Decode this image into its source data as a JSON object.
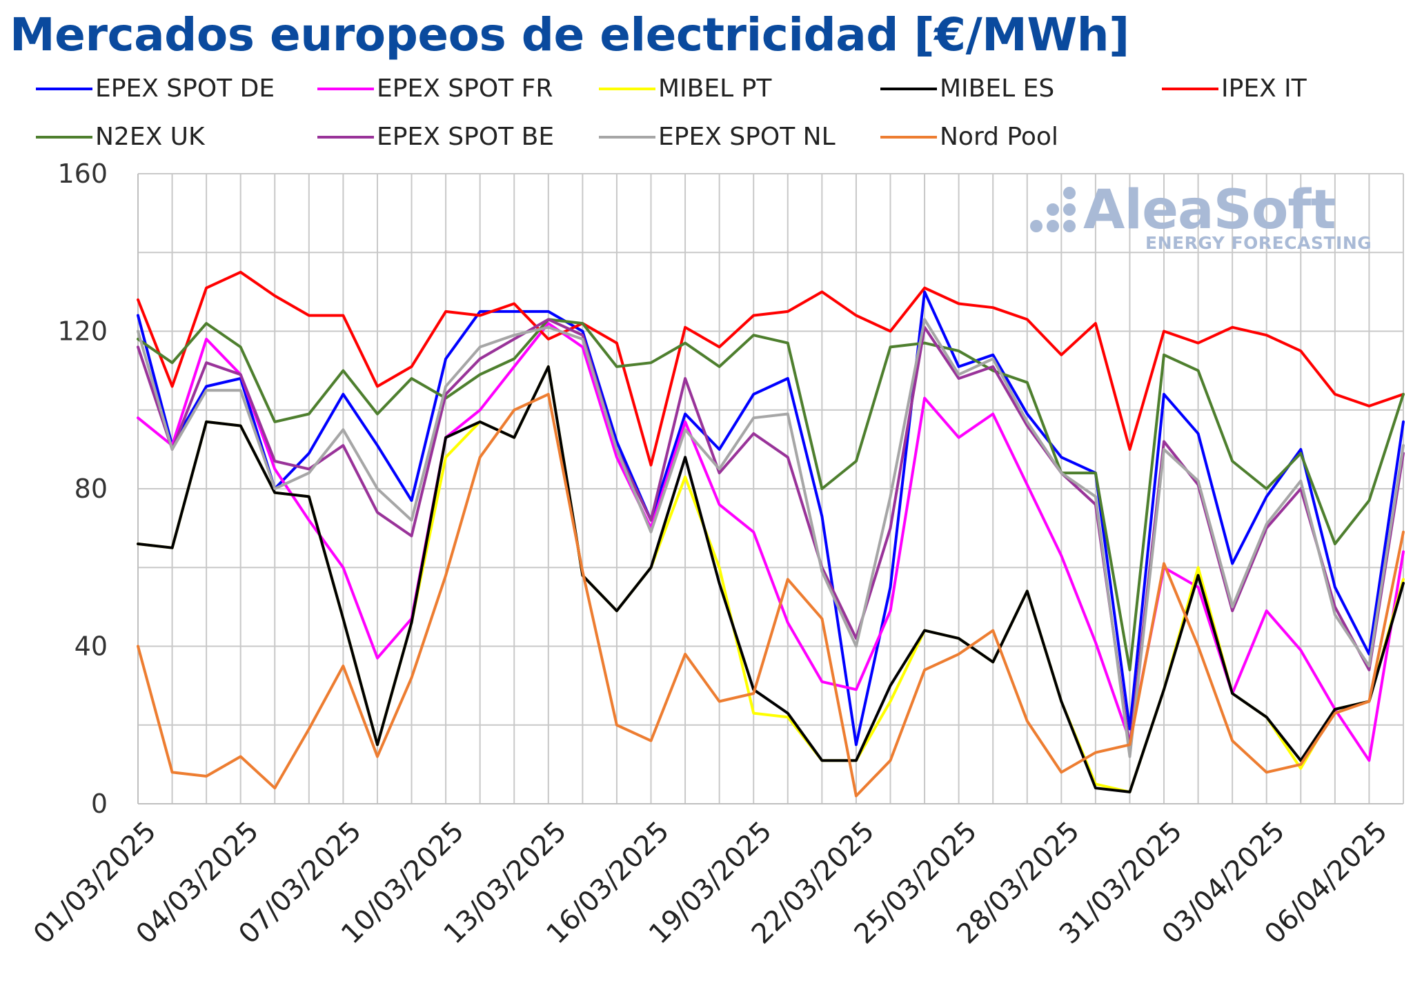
{
  "chart_data": {
    "type": "line",
    "title": "Mercados europeos de electricidad [€/MWh]",
    "xlabel": "",
    "ylabel": "",
    "ylim": [
      0,
      160
    ],
    "yticks": [
      0,
      40,
      80,
      120,
      160
    ],
    "grid": true,
    "legend_position": "top",
    "x": [
      "01/03/2025",
      "02/03/2025",
      "03/03/2025",
      "04/03/2025",
      "05/03/2025",
      "06/03/2025",
      "07/03/2025",
      "08/03/2025",
      "09/03/2025",
      "10/03/2025",
      "11/03/2025",
      "12/03/2025",
      "13/03/2025",
      "14/03/2025",
      "15/03/2025",
      "16/03/2025",
      "17/03/2025",
      "18/03/2025",
      "19/03/2025",
      "20/03/2025",
      "21/03/2025",
      "22/03/2025",
      "23/03/2025",
      "24/03/2025",
      "25/03/2025",
      "26/03/2025",
      "27/03/2025",
      "28/03/2025",
      "29/03/2025",
      "30/03/2025",
      "31/03/2025",
      "01/04/2025",
      "02/04/2025",
      "03/04/2025",
      "04/04/2025",
      "05/04/2025",
      "06/04/2025",
      "07/04/2025"
    ],
    "x_tick_labels": [
      {
        "index": 0,
        "label": "01/03/2025"
      },
      {
        "index": 3,
        "label": "04/03/2025"
      },
      {
        "index": 6,
        "label": "07/03/2025"
      },
      {
        "index": 9,
        "label": "10/03/2025"
      },
      {
        "index": 12,
        "label": "13/03/2025"
      },
      {
        "index": 15,
        "label": "16/03/2025"
      },
      {
        "index": 18,
        "label": "19/03/2025"
      },
      {
        "index": 21,
        "label": "22/03/2025"
      },
      {
        "index": 24,
        "label": "25/03/2025"
      },
      {
        "index": 27,
        "label": "28/03/2025"
      },
      {
        "index": 30,
        "label": "31/03/2025"
      },
      {
        "index": 33,
        "label": "03/04/2025"
      },
      {
        "index": 36,
        "label": "06/04/2025"
      }
    ],
    "series": [
      {
        "name": "EPEX SPOT DE",
        "color": "#0000ff",
        "values": [
          124,
          91,
          106,
          108,
          80,
          89,
          104,
          91,
          77,
          113,
          125,
          125,
          125,
          120,
          92,
          72,
          99,
          90,
          104,
          108,
          73,
          15,
          55,
          130,
          111,
          114,
          99,
          88,
          84,
          19,
          104,
          94,
          61,
          78,
          90,
          55,
          38,
          97
        ]
      },
      {
        "name": "EPEX SPOT FR",
        "color": "#ff00ff",
        "values": [
          98,
          91,
          118,
          109,
          85,
          72,
          60,
          37,
          47,
          93,
          100,
          111,
          122,
          116,
          88,
          70,
          97,
          76,
          69,
          46,
          31,
          29,
          49,
          103,
          93,
          99,
          81,
          63,
          41,
          16,
          60,
          55,
          28,
          49,
          39,
          24,
          11,
          64
        ]
      },
      {
        "name": "MIBEL PT",
        "color": "#ffff00",
        "values": [
          66,
          65,
          97,
          96,
          79,
          78,
          47,
          15,
          46,
          88,
          97,
          93,
          111,
          58,
          49,
          60,
          83,
          60,
          23,
          22,
          11,
          11,
          26,
          44,
          42,
          36,
          54,
          26,
          5,
          3,
          29,
          60,
          28,
          22,
          9,
          24,
          26,
          57
        ]
      },
      {
        "name": "MIBEL ES",
        "color": "#000000",
        "values": [
          66,
          65,
          97,
          96,
          79,
          78,
          47,
          15,
          46,
          93,
          97,
          93,
          111,
          58,
          49,
          60,
          88,
          56,
          29,
          23,
          11,
          11,
          30,
          44,
          42,
          36,
          54,
          26,
          4,
          3,
          29,
          58,
          28,
          22,
          11,
          24,
          26,
          56
        ]
      },
      {
        "name": "IPEX IT",
        "color": "#ff0000",
        "values": [
          128,
          106,
          131,
          135,
          129,
          124,
          124,
          106,
          111,
          125,
          124,
          127,
          118,
          122,
          117,
          86,
          121,
          116,
          124,
          125,
          130,
          124,
          120,
          131,
          127,
          126,
          123,
          114,
          122,
          90,
          120,
          117,
          121,
          119,
          115,
          104,
          101,
          104
        ]
      },
      {
        "name": "N2EX UK",
        "color": "#4e7f2e",
        "values": [
          118,
          112,
          122,
          116,
          97,
          99,
          110,
          99,
          108,
          103,
          109,
          113,
          123,
          122,
          111,
          112,
          117,
          111,
          119,
          117,
          80,
          87,
          116,
          117,
          115,
          110,
          107,
          84,
          84,
          34,
          114,
          110,
          87,
          80,
          89,
          66,
          77,
          104
        ]
      },
      {
        "name": "EPEX SPOT BE",
        "color": "#993399",
        "values": [
          116,
          90,
          112,
          109,
          87,
          85,
          91,
          74,
          68,
          104,
          113,
          118,
          123,
          119,
          90,
          72,
          108,
          84,
          94,
          88,
          60,
          42,
          70,
          121,
          108,
          111,
          96,
          84,
          76,
          14,
          92,
          81,
          49,
          70,
          80,
          50,
          34,
          89
        ]
      },
      {
        "name": "EPEX SPOT NL",
        "color": "#a6a6a6",
        "values": [
          120,
          90,
          105,
          105,
          80,
          84,
          95,
          80,
          72,
          106,
          116,
          119,
          121,
          118,
          90,
          69,
          95,
          85,
          98,
          99,
          59,
          40,
          78,
          123,
          109,
          113,
          97,
          84,
          78,
          12,
          90,
          82,
          50,
          71,
          82,
          48,
          35,
          91
        ]
      },
      {
        "name": "Nord Pool",
        "color": "#ed7d31",
        "values": [
          40,
          8,
          7,
          12,
          4,
          19,
          35,
          12,
          32,
          58,
          88,
          100,
          104,
          59,
          20,
          16,
          38,
          26,
          28,
          57,
          47,
          2,
          11,
          34,
          38,
          44,
          21,
          8,
          13,
          15,
          61,
          40,
          16,
          8,
          10,
          23,
          26,
          69
        ]
      }
    ]
  },
  "logo": {
    "name": "AleaSoft",
    "tagline": "ENERGY FORECASTING",
    "color": "#a9bad6"
  }
}
